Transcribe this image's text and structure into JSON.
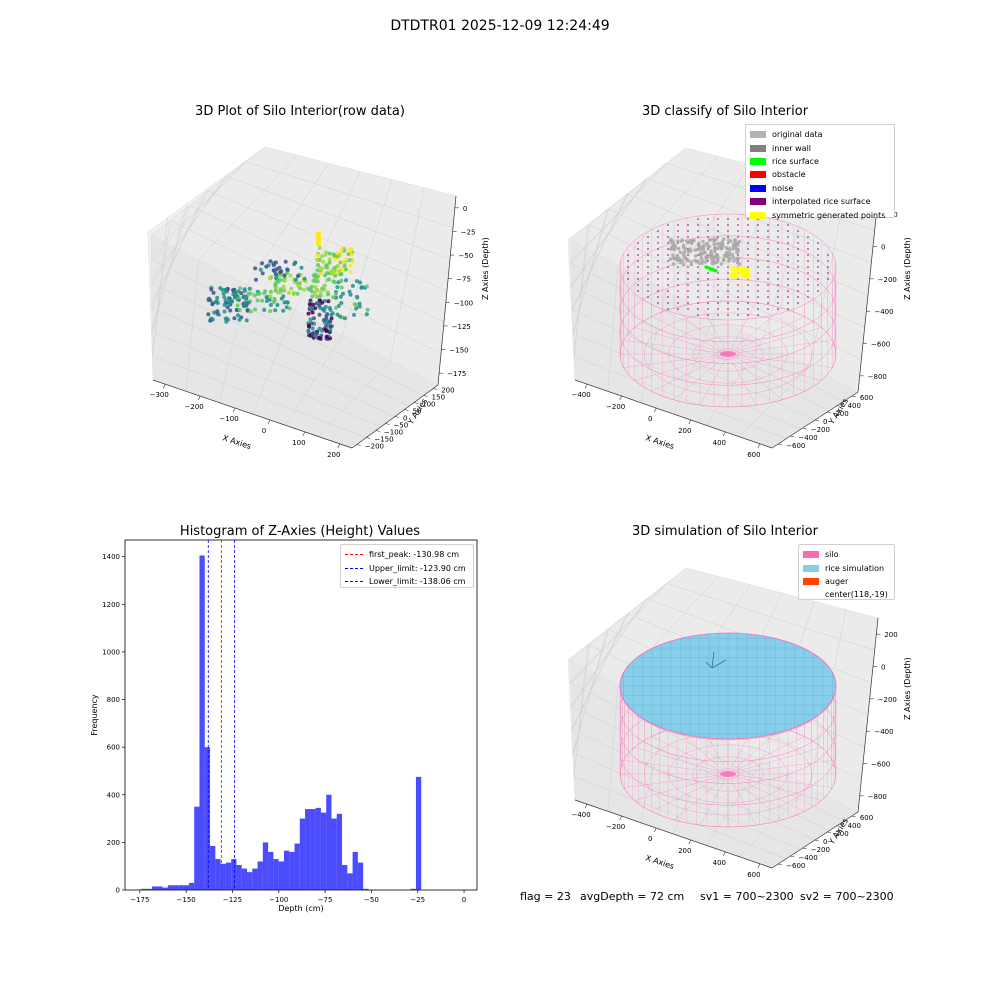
{
  "suptitle": "DTDTR01 2025-12-09 12:24:49",
  "panels": {
    "raw": {
      "title": "3D Plot of Silo Interior(row data)",
      "xlabel": "X Axies",
      "ylabel": "Y Axies",
      "zlabel": "Z Axies (Depth)",
      "xticks": [
        "−300",
        "−200",
        "−100",
        "0",
        "100",
        "200"
      ],
      "yticks": [
        "200",
        "150",
        "100",
        "50",
        "0",
        "−50",
        "−100",
        "−150",
        "−200"
      ],
      "zticks": [
        "0",
        "−25",
        "−50",
        "−75",
        "−100",
        "−125",
        "−150",
        "−175"
      ]
    },
    "classify": {
      "title": "3D classify of Silo Interior",
      "xlabel": "X Axies",
      "ylabel": "Y Axies",
      "zlabel": "Z Axies (Depth)",
      "xticks": [
        "−400",
        "−200",
        "0",
        "200",
        "400",
        "600"
      ],
      "yticks": [
        "600",
        "400",
        "200",
        "0",
        "−200",
        "−400",
        "−600"
      ],
      "zticks": [
        "200",
        "0",
        "−200",
        "−400",
        "−600",
        "−800"
      ],
      "legend": [
        {
          "label": "original data",
          "color": "#b3b3b3"
        },
        {
          "label": "inner wall",
          "color": "#808080"
        },
        {
          "label": "rice surface",
          "color": "#00ff00"
        },
        {
          "label": "obstacle",
          "color": "#ff0000"
        },
        {
          "label": "noise",
          "color": "#0000ff"
        },
        {
          "label": "interpolated rice surface",
          "color": "#800080"
        },
        {
          "label": "symmetric generated points",
          "color": "#ffff00"
        }
      ]
    },
    "histogram": {
      "title": "Histogram of Z-Axies (Height) Values",
      "xlabel": "Depth (cm)",
      "ylabel": "Frequency",
      "xticks": [
        "−175",
        "−150",
        "−125",
        "−100",
        "−75",
        "−50",
        "−25",
        "0"
      ],
      "yticks": [
        "0",
        "200",
        "400",
        "600",
        "800",
        "1000",
        "1200",
        "1400"
      ],
      "legend": [
        {
          "label": "first_peak: -130.98 cm",
          "color": "#ff0000"
        },
        {
          "label": "Upper_limit: -123.90 cm",
          "color": "#0000ff"
        },
        {
          "label": "Lower_limit: -138.06 cm",
          "color": "#0000ff"
        }
      ]
    },
    "simulation": {
      "title": "3D simulation of Silo Interior",
      "xlabel": "X Axies",
      "ylabel": "Y Axies",
      "zlabel": "Z Axies (Depth)",
      "xticks": [
        "−400",
        "−200",
        "0",
        "200",
        "400",
        "600"
      ],
      "yticks": [
        "600",
        "400",
        "200",
        "0",
        "−200",
        "−400",
        "−600"
      ],
      "zticks": [
        "200",
        "0",
        "−200",
        "−400",
        "−600",
        "−800"
      ],
      "legend": [
        {
          "label": "silo",
          "color": "#ff69b4"
        },
        {
          "label": "rice simulation",
          "color": "#87ceeb"
        },
        {
          "label": "auger",
          "color": "#ff4500"
        },
        {
          "label": "center(118,-19)",
          "color": "#ffffff"
        }
      ]
    }
  },
  "footer": {
    "flag": "flag = 23",
    "avg_depth": "avgDepth = 72 cm",
    "sv1": "sv1 = 700~2300",
    "sv2": "sv2 = 700~2300"
  },
  "chart_data": [
    {
      "type": "histogram",
      "title": "Histogram of Z-Axies (Height) Values",
      "xlabel": "Depth (cm)",
      "ylabel": "Frequency",
      "xlim": [
        -183,
        7
      ],
      "ylim": [
        0,
        1470
      ],
      "bin_start": -177,
      "bin_width": 2.85,
      "counts": [
        2,
        5,
        5,
        15,
        15,
        10,
        20,
        20,
        20,
        20,
        30,
        350,
        1405,
        600,
        185,
        130,
        110,
        115,
        130,
        105,
        90,
        75,
        90,
        120,
        200,
        160,
        130,
        120,
        165,
        160,
        195,
        300,
        340,
        340,
        345,
        325,
        400,
        300,
        320,
        105,
        70,
        160,
        115,
        5,
        2,
        0,
        0,
        0,
        0,
        0,
        0,
        0,
        5,
        475
      ],
      "bar_color": "#0000ff",
      "vlines": [
        {
          "name": "first_peak",
          "x": -130.98,
          "color": "#ff0000"
        },
        {
          "name": "Upper_limit",
          "x": -123.9,
          "color": "#0000ff"
        },
        {
          "name": "Lower_limit",
          "x": -138.06,
          "color": "#0000ff"
        }
      ],
      "legend_position": "top-right"
    },
    {
      "type": "scatter",
      "title": "3D Plot of Silo Interior(row data)",
      "xlim": [
        -350,
        250
      ],
      "ylim": [
        -200,
        200
      ],
      "zlim": [
        -175,
        0
      ],
      "colormap": "viridis"
    },
    {
      "type": "scatter",
      "title": "3D classify of Silo Interior",
      "xlim": [
        -450,
        650
      ],
      "ylim": [
        -650,
        650
      ],
      "zlim": [
        -900,
        200
      ],
      "legend_position": "top-right"
    },
    {
      "type": "scatter",
      "title": "3D simulation of Silo Interior",
      "xlim": [
        -450,
        650
      ],
      "ylim": [
        -650,
        650
      ],
      "zlim": [
        -900,
        200
      ],
      "legend_position": "top-right"
    }
  ]
}
